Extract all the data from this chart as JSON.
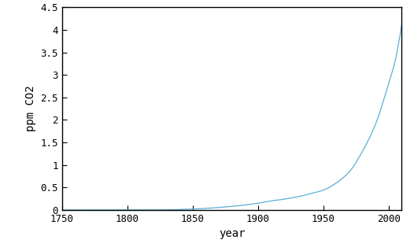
{
  "title": "",
  "xlabel": "year",
  "ylabel": "ppm CO2",
  "xlim": [
    1750,
    2010
  ],
  "ylim": [
    0,
    4.5
  ],
  "xticks": [
    1750,
    1800,
    1850,
    1900,
    1950,
    2000
  ],
  "yticks": [
    0,
    0.5,
    1.0,
    1.5,
    2.0,
    2.5,
    3.0,
    3.5,
    4.0,
    4.5
  ],
  "line_color": "#5bafd6",
  "background_color": "#ffffff",
  "x_start": 1750,
  "x_end": 2010,
  "figsize": [
    5.26,
    3.14
  ],
  "dpi": 100,
  "data_points": {
    "years": [
      1750,
      1760,
      1770,
      1780,
      1790,
      1800,
      1810,
      1820,
      1830,
      1840,
      1850,
      1860,
      1870,
      1880,
      1890,
      1900,
      1910,
      1920,
      1930,
      1940,
      1950,
      1960,
      1970,
      1980,
      1990,
      2000,
      2005,
      2008,
      2010
    ],
    "values": [
      0.0,
      0.0,
      0.0,
      0.0,
      0.0,
      0.0,
      0.0,
      0.0,
      0.002,
      0.01,
      0.02,
      0.035,
      0.055,
      0.08,
      0.11,
      0.15,
      0.2,
      0.24,
      0.29,
      0.36,
      0.44,
      0.6,
      0.85,
      1.3,
      1.9,
      2.8,
      3.3,
      3.75,
      4.1
    ]
  }
}
